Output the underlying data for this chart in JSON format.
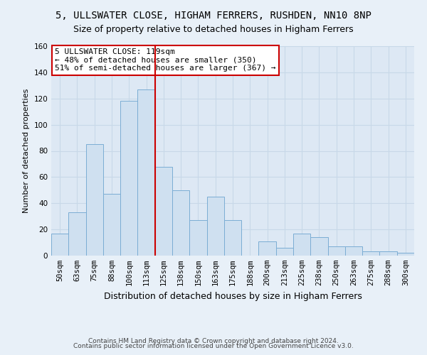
{
  "title1": "5, ULLSWATER CLOSE, HIGHAM FERRERS, RUSHDEN, NN10 8NP",
  "title2": "Size of property relative to detached houses in Higham Ferrers",
  "xlabel": "Distribution of detached houses by size in Higham Ferrers",
  "ylabel": "Number of detached properties",
  "categories": [
    "50sqm",
    "63sqm",
    "75sqm",
    "88sqm",
    "100sqm",
    "113sqm",
    "125sqm",
    "138sqm",
    "150sqm",
    "163sqm",
    "175sqm",
    "188sqm",
    "200sqm",
    "213sqm",
    "225sqm",
    "238sqm",
    "250sqm",
    "263sqm",
    "275sqm",
    "288sqm",
    "300sqm"
  ],
  "values": [
    17,
    33,
    85,
    47,
    118,
    127,
    68,
    50,
    27,
    45,
    27,
    0,
    11,
    6,
    17,
    14,
    7,
    7,
    3,
    3,
    2
  ],
  "bar_color": "#cfe0f0",
  "bar_edge_color": "#7badd4",
  "vline_color": "#cc0000",
  "vline_bin": 5,
  "annotation_text1": "5 ULLSWATER CLOSE: 119sqm",
  "annotation_text2": "← 48% of detached houses are smaller (350)",
  "annotation_text3": "51% of semi-detached houses are larger (367) →",
  "annotation_box_color": "#ffffff",
  "annotation_border_color": "#cc0000",
  "ylim": [
    0,
    160
  ],
  "yticks": [
    0,
    20,
    40,
    60,
    80,
    100,
    120,
    140,
    160
  ],
  "footnote1": "Contains HM Land Registry data © Crown copyright and database right 2024.",
  "footnote2": "Contains public sector information licensed under the Open Government Licence v3.0.",
  "bg_color": "#e8f0f8",
  "plot_bg_color": "#dde8f4",
  "grid_color": "#c8d8e8",
  "title1_fontsize": 10,
  "title2_fontsize": 9,
  "xlabel_fontsize": 9,
  "ylabel_fontsize": 8,
  "tick_fontsize": 7.5,
  "annot_fontsize": 8,
  "footnote_fontsize": 6.5
}
